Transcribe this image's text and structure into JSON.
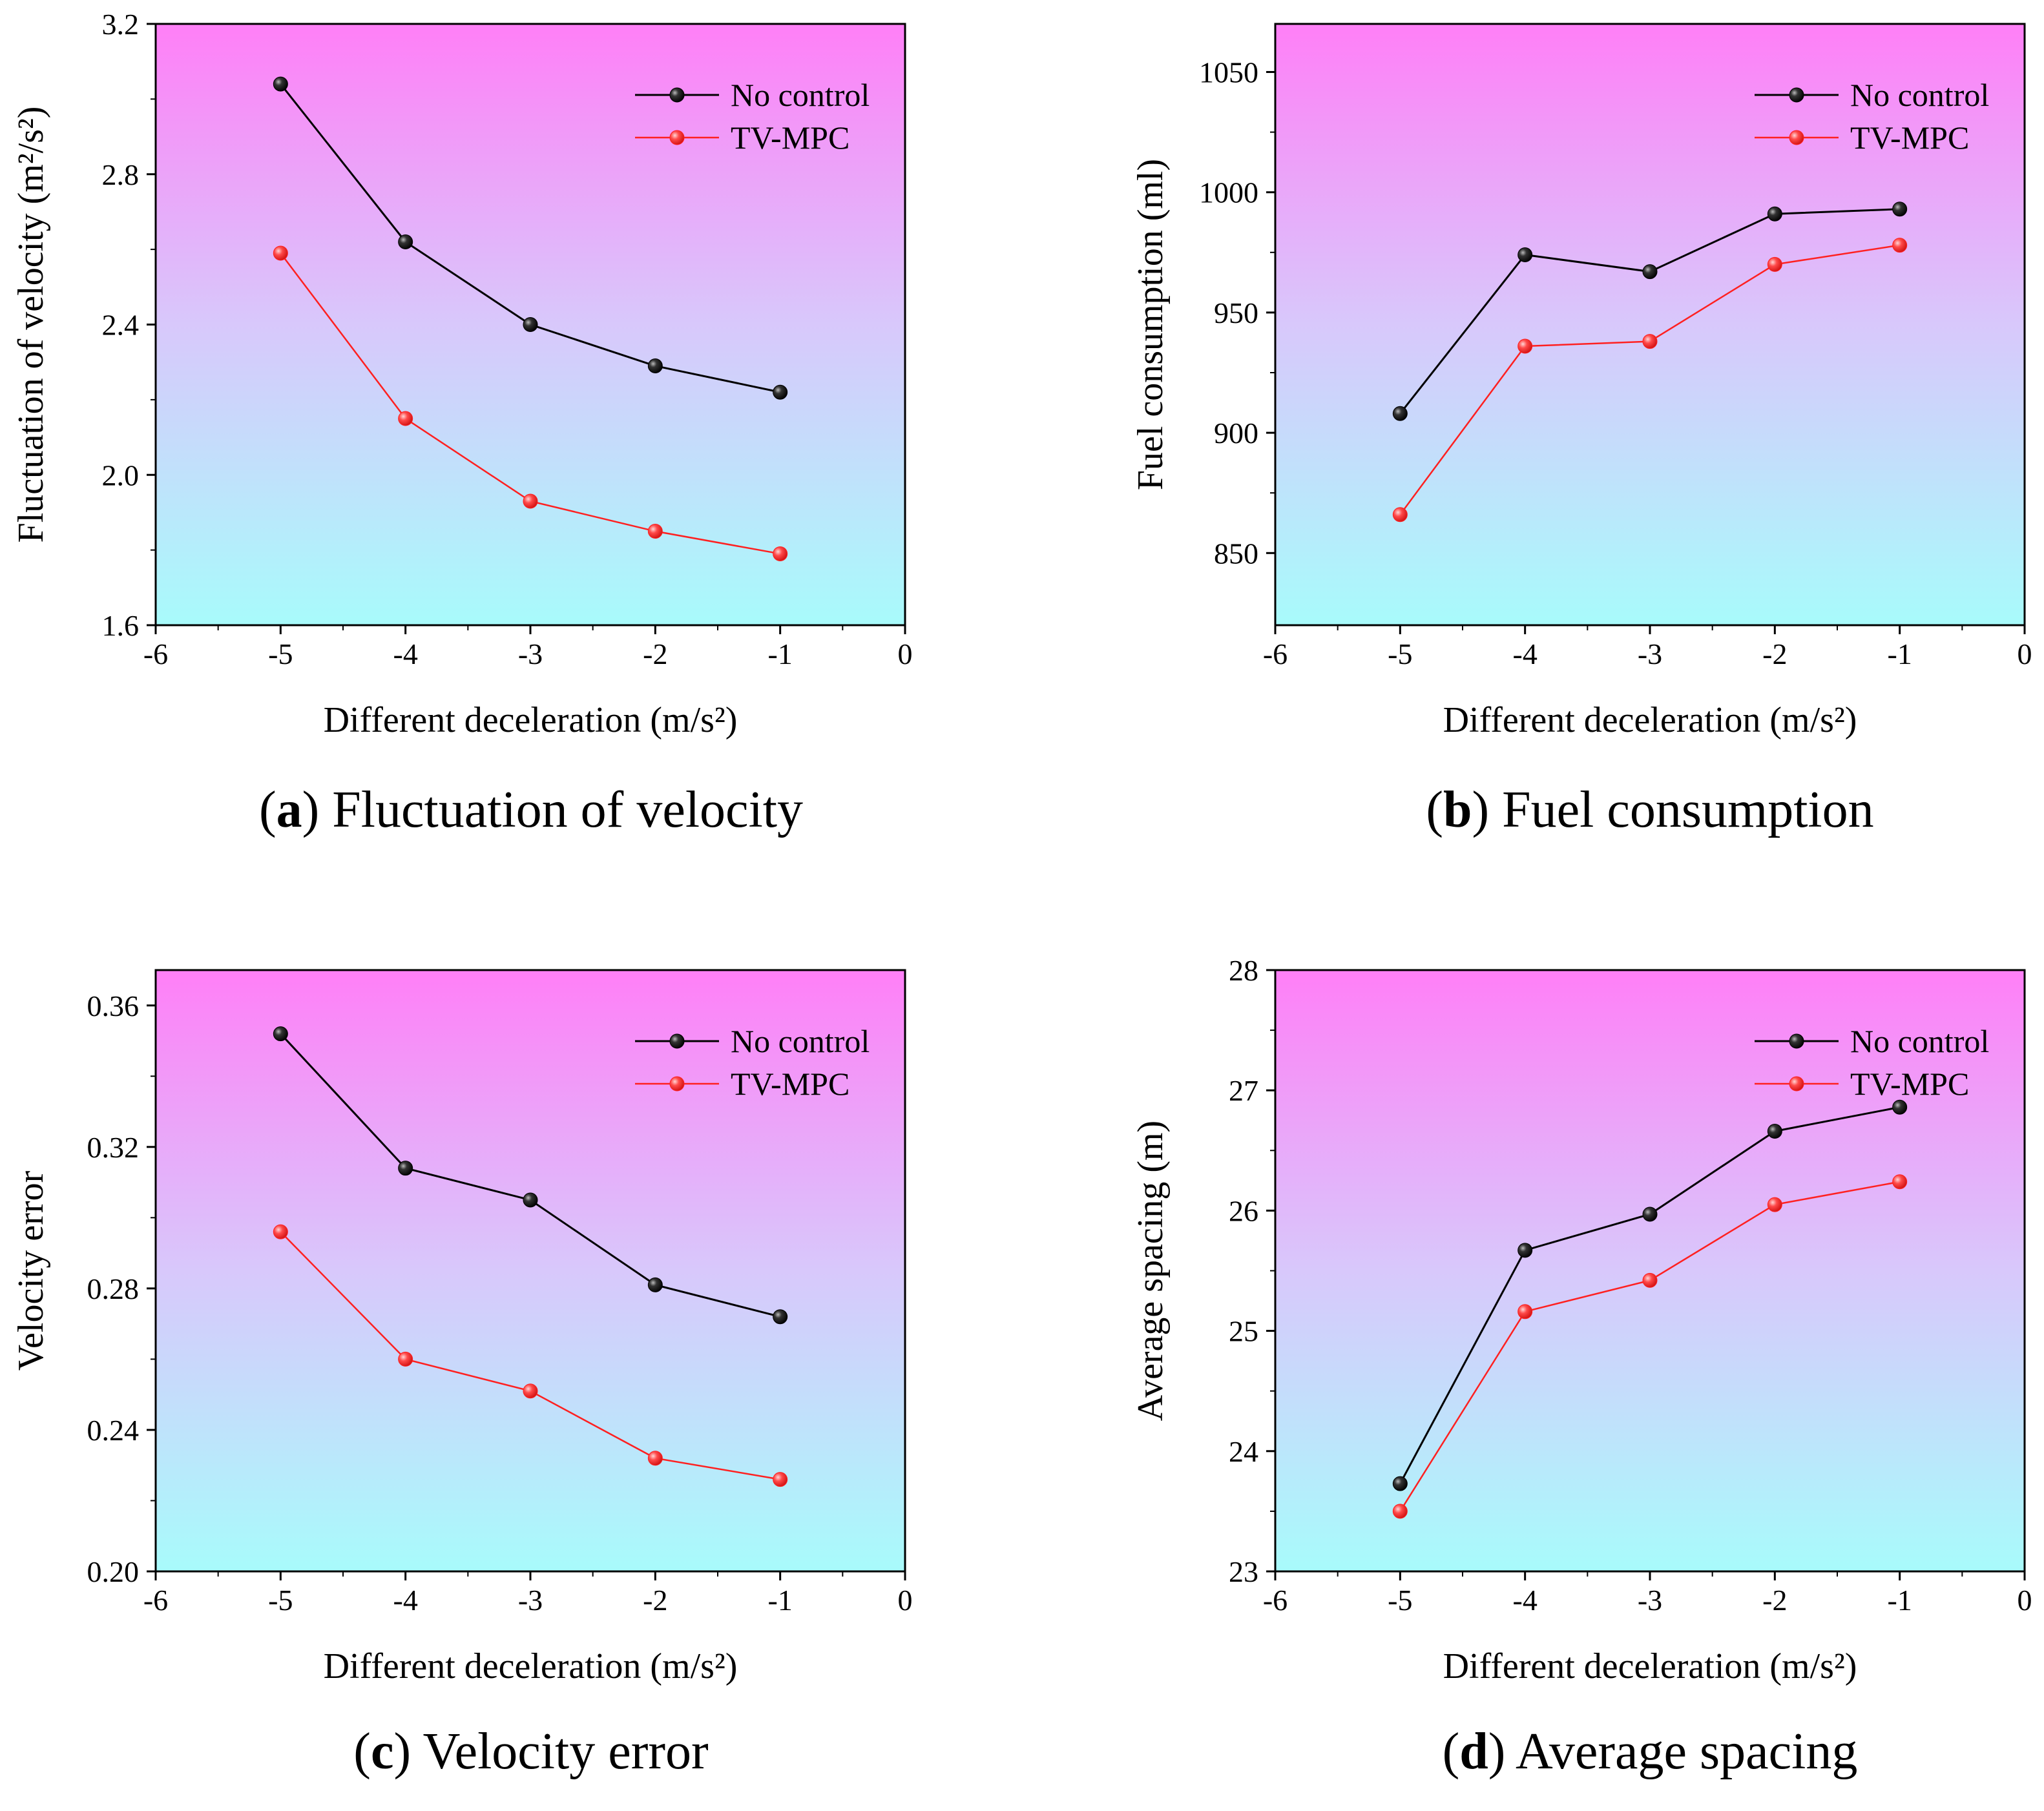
{
  "colors": {
    "series_no_control": "#000000",
    "series_tv_mpc": "#ff2020",
    "bg_top": "#ff7ff7",
    "bg_bottom": "#a8fbfb"
  },
  "legend": {
    "no_control": "No control",
    "tv_mpc": "TV-MPC"
  },
  "chart_data": [
    {
      "type": "line",
      "id": "a",
      "title": "Fluctuation of velocity",
      "caption_letter": "(a)",
      "caption_text": "Fluctuation of velocity",
      "xlabel": "Different deceleration (m/s²)",
      "ylabel": "Fluctuation of velocity (m²/s²)",
      "xlim": [
        -6,
        0
      ],
      "ylim": [
        1.6,
        3.2
      ],
      "xticks": [
        -6,
        -5,
        -4,
        -3,
        -2,
        -1,
        0
      ],
      "yticks": [
        1.6,
        2.0,
        2.4,
        2.8,
        3.2
      ],
      "ytick_labels": [
        "1.6",
        "2.0",
        "2.4",
        "2.8",
        "3.2"
      ],
      "legend_position": "top-right",
      "x": [
        -5,
        -4,
        -3,
        -2,
        -1
      ],
      "series": [
        {
          "name": "No control",
          "values": [
            3.04,
            2.62,
            2.4,
            2.29,
            2.22
          ]
        },
        {
          "name": "TV-MPC",
          "values": [
            2.59,
            2.15,
            1.93,
            1.85,
            1.79
          ]
        }
      ]
    },
    {
      "type": "line",
      "id": "b",
      "title": "Fuel consumption",
      "caption_letter": "(b)",
      "caption_text": "Fuel consumption",
      "xlabel": "Different deceleration (m/s²)",
      "ylabel": "Fuel consumption (ml)",
      "xlim": [
        -6,
        0
      ],
      "ylim": [
        820,
        1070
      ],
      "xticks": [
        -6,
        -5,
        -4,
        -3,
        -2,
        -1,
        0
      ],
      "yticks": [
        850,
        900,
        950,
        1000,
        1050
      ],
      "ytick_labels": [
        "850",
        "900",
        "950",
        "1000",
        "1050"
      ],
      "legend_position": "top-right",
      "x": [
        -5,
        -4,
        -3,
        -2,
        -1
      ],
      "series": [
        {
          "name": "No control",
          "values": [
            908,
            974,
            967,
            991,
            993
          ]
        },
        {
          "name": "TV-MPC",
          "values": [
            866,
            936,
            938,
            970,
            978
          ]
        }
      ]
    },
    {
      "type": "line",
      "id": "c",
      "title": "Velocity error",
      "caption_letter": "(c)",
      "caption_text": "Velocity error",
      "xlabel": "Different deceleration (m/s²)",
      "ylabel": "Velocity error",
      "xlim": [
        -6,
        0
      ],
      "ylim": [
        0.2,
        0.37
      ],
      "xticks": [
        -6,
        -5,
        -4,
        -3,
        -2,
        -1,
        0
      ],
      "yticks": [
        0.2,
        0.24,
        0.28,
        0.32,
        0.36
      ],
      "ytick_labels": [
        "0.20",
        "0.24",
        "0.28",
        "0.32",
        "0.36"
      ],
      "legend_position": "top-right",
      "x": [
        -5,
        -4,
        -3,
        -2,
        -1
      ],
      "series": [
        {
          "name": "No control",
          "values": [
            0.352,
            0.314,
            0.305,
            0.281,
            0.272
          ]
        },
        {
          "name": "TV-MPC",
          "values": [
            0.296,
            0.26,
            0.251,
            0.232,
            0.226
          ]
        }
      ]
    },
    {
      "type": "line",
      "id": "d",
      "title": "Average spacing",
      "caption_letter": "(d)",
      "caption_text": "Average spacing",
      "xlabel": "Different deceleration (m/s²)",
      "ylabel": "Average spacing (m)",
      "xlim": [
        -6,
        0
      ],
      "ylim": [
        23,
        28
      ],
      "xticks": [
        -6,
        -5,
        -4,
        -3,
        -2,
        -1,
        0
      ],
      "yticks": [
        23,
        24,
        25,
        26,
        27,
        28
      ],
      "ytick_labels": [
        "23",
        "24",
        "25",
        "26",
        "27",
        "28"
      ],
      "legend_position": "top-right",
      "x": [
        -5,
        -4,
        -3,
        -2,
        -1
      ],
      "series": [
        {
          "name": "No control",
          "values": [
            23.73,
            25.67,
            25.97,
            26.66,
            26.86
          ]
        },
        {
          "name": "TV-MPC",
          "values": [
            23.5,
            25.16,
            25.42,
            26.05,
            26.24
          ]
        }
      ]
    }
  ]
}
